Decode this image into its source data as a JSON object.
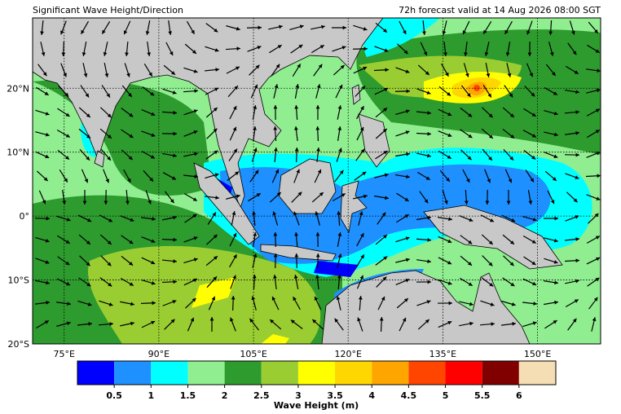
{
  "header": {
    "title": "Significant Wave Height/Direction",
    "valid": "72h forecast valid at 14 Aug 2026 08:00 SGT"
  },
  "map": {
    "lonlim": [
      70,
      160
    ],
    "latlim": [
      -20,
      31
    ],
    "grid": true,
    "lonticks": [
      {
        "value": 75,
        "label": "75°E"
      },
      {
        "value": 90,
        "label": "90°E"
      },
      {
        "value": 105,
        "label": "105°E"
      },
      {
        "value": 120,
        "label": "120°E"
      },
      {
        "value": 135,
        "label": "135°E"
      },
      {
        "value": 150,
        "label": "150°E"
      }
    ],
    "latticks": [
      {
        "value": 20,
        "label": "20°N"
      },
      {
        "value": 10,
        "label": "10°N"
      },
      {
        "value": 0,
        "label": "0°"
      },
      {
        "value": -10,
        "label": "10°S"
      },
      {
        "value": -20,
        "label": "20°S"
      }
    ]
  },
  "colorbar": {
    "label": "Wave Height (m)",
    "colors": [
      "#0000ff",
      "#1e90ff",
      "#00ffff",
      "#90ee90",
      "#2e9b2e",
      "#9acd32",
      "#ffff00",
      "#ffd700",
      "#ffa500",
      "#ff4500",
      "#ff0000",
      "#800000",
      "#f5deb3"
    ],
    "ticks": [
      0.5,
      1,
      1.5,
      2,
      2.5,
      3,
      3.5,
      4,
      4.5,
      5,
      5.5,
      6
    ]
  }
}
